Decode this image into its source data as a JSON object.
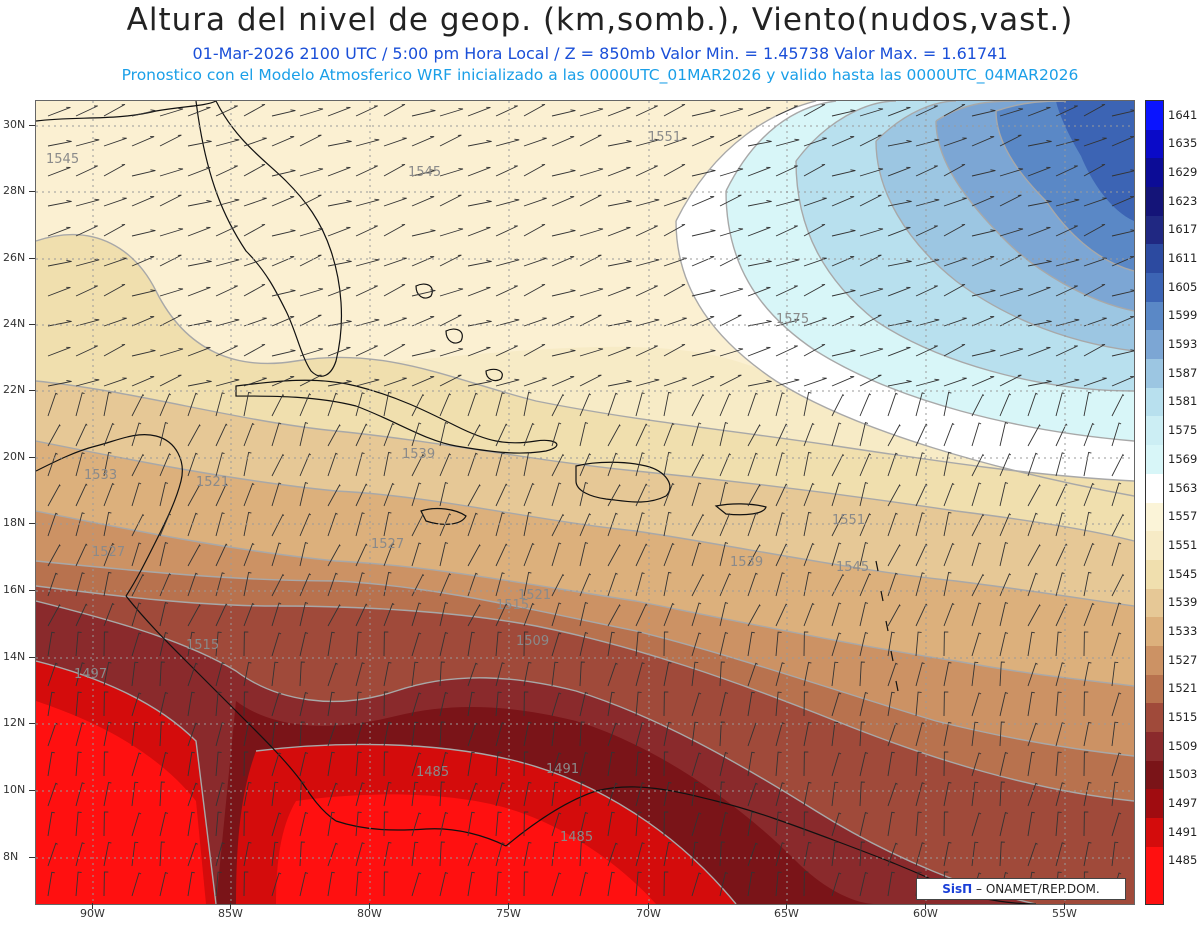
{
  "header": {
    "title": "Altura del nivel de geop. (km,somb.), Viento(nudos,vast.)",
    "line2": "01-Mar-2026  2100 UTC / 5:00 pm Hora Local / Z = 850mb     Valor Min. = 1.45738  Valor Max. = 1.61741",
    "line3": "Pronostico con el Modelo Atmosferico WRF inicializado a las 0000UTC_01MAR2026 y valido hasta las  0000UTC_04MAR2026"
  },
  "map": {
    "lat_labels": [
      "30N",
      "28N",
      "26N",
      "24N",
      "22N",
      "20N",
      "18N",
      "16N",
      "14N",
      "12N",
      "10N",
      "8N"
    ],
    "lon_labels": [
      "90W",
      "85W",
      "80W",
      "75W",
      "70W",
      "65W",
      "60W",
      "55W"
    ],
    "contour_labels": [
      "1545",
      "1545",
      "1551",
      "1575",
      "1539",
      "1533",
      "1527",
      "1527",
      "1521",
      "1515",
      "1515",
      "1509",
      "1497",
      "1485",
      "1491",
      "1485",
      "1539",
      "1545",
      "1551",
      "1521"
    ]
  },
  "colorbar": {
    "levels": [
      "1641",
      "1635",
      "1629",
      "1623",
      "1617",
      "1611",
      "1605",
      "1599",
      "1593",
      "1587",
      "1581",
      "1575",
      "1569",
      "1563",
      "1557",
      "1551",
      "1545",
      "1539",
      "1533",
      "1527",
      "1521",
      "1515",
      "1509",
      "1503",
      "1497",
      "1491",
      "1485"
    ],
    "colors": [
      "#0a14ff",
      "#0a0ac8",
      "#0c0c96",
      "#141478",
      "#202882",
      "#2c4aa0",
      "#3c64b4",
      "#5a88c6",
      "#7ca6d4",
      "#9cc6e2",
      "#b8e0ee",
      "#cceef4",
      "#d8f6f8",
      "#ffffff",
      "#fbf4d8",
      "#f7ebc6",
      "#f0dfae",
      "#e6c896",
      "#dcb07c",
      "#cc9264",
      "#b8724e",
      "#a04a3a",
      "#8a2a2c",
      "#7a1418",
      "#a00c10",
      "#d40c0c",
      "#ff1010"
    ]
  },
  "credit": {
    "brand": "SisΠ",
    "text": " – ONAMET/REP.DOM."
  }
}
